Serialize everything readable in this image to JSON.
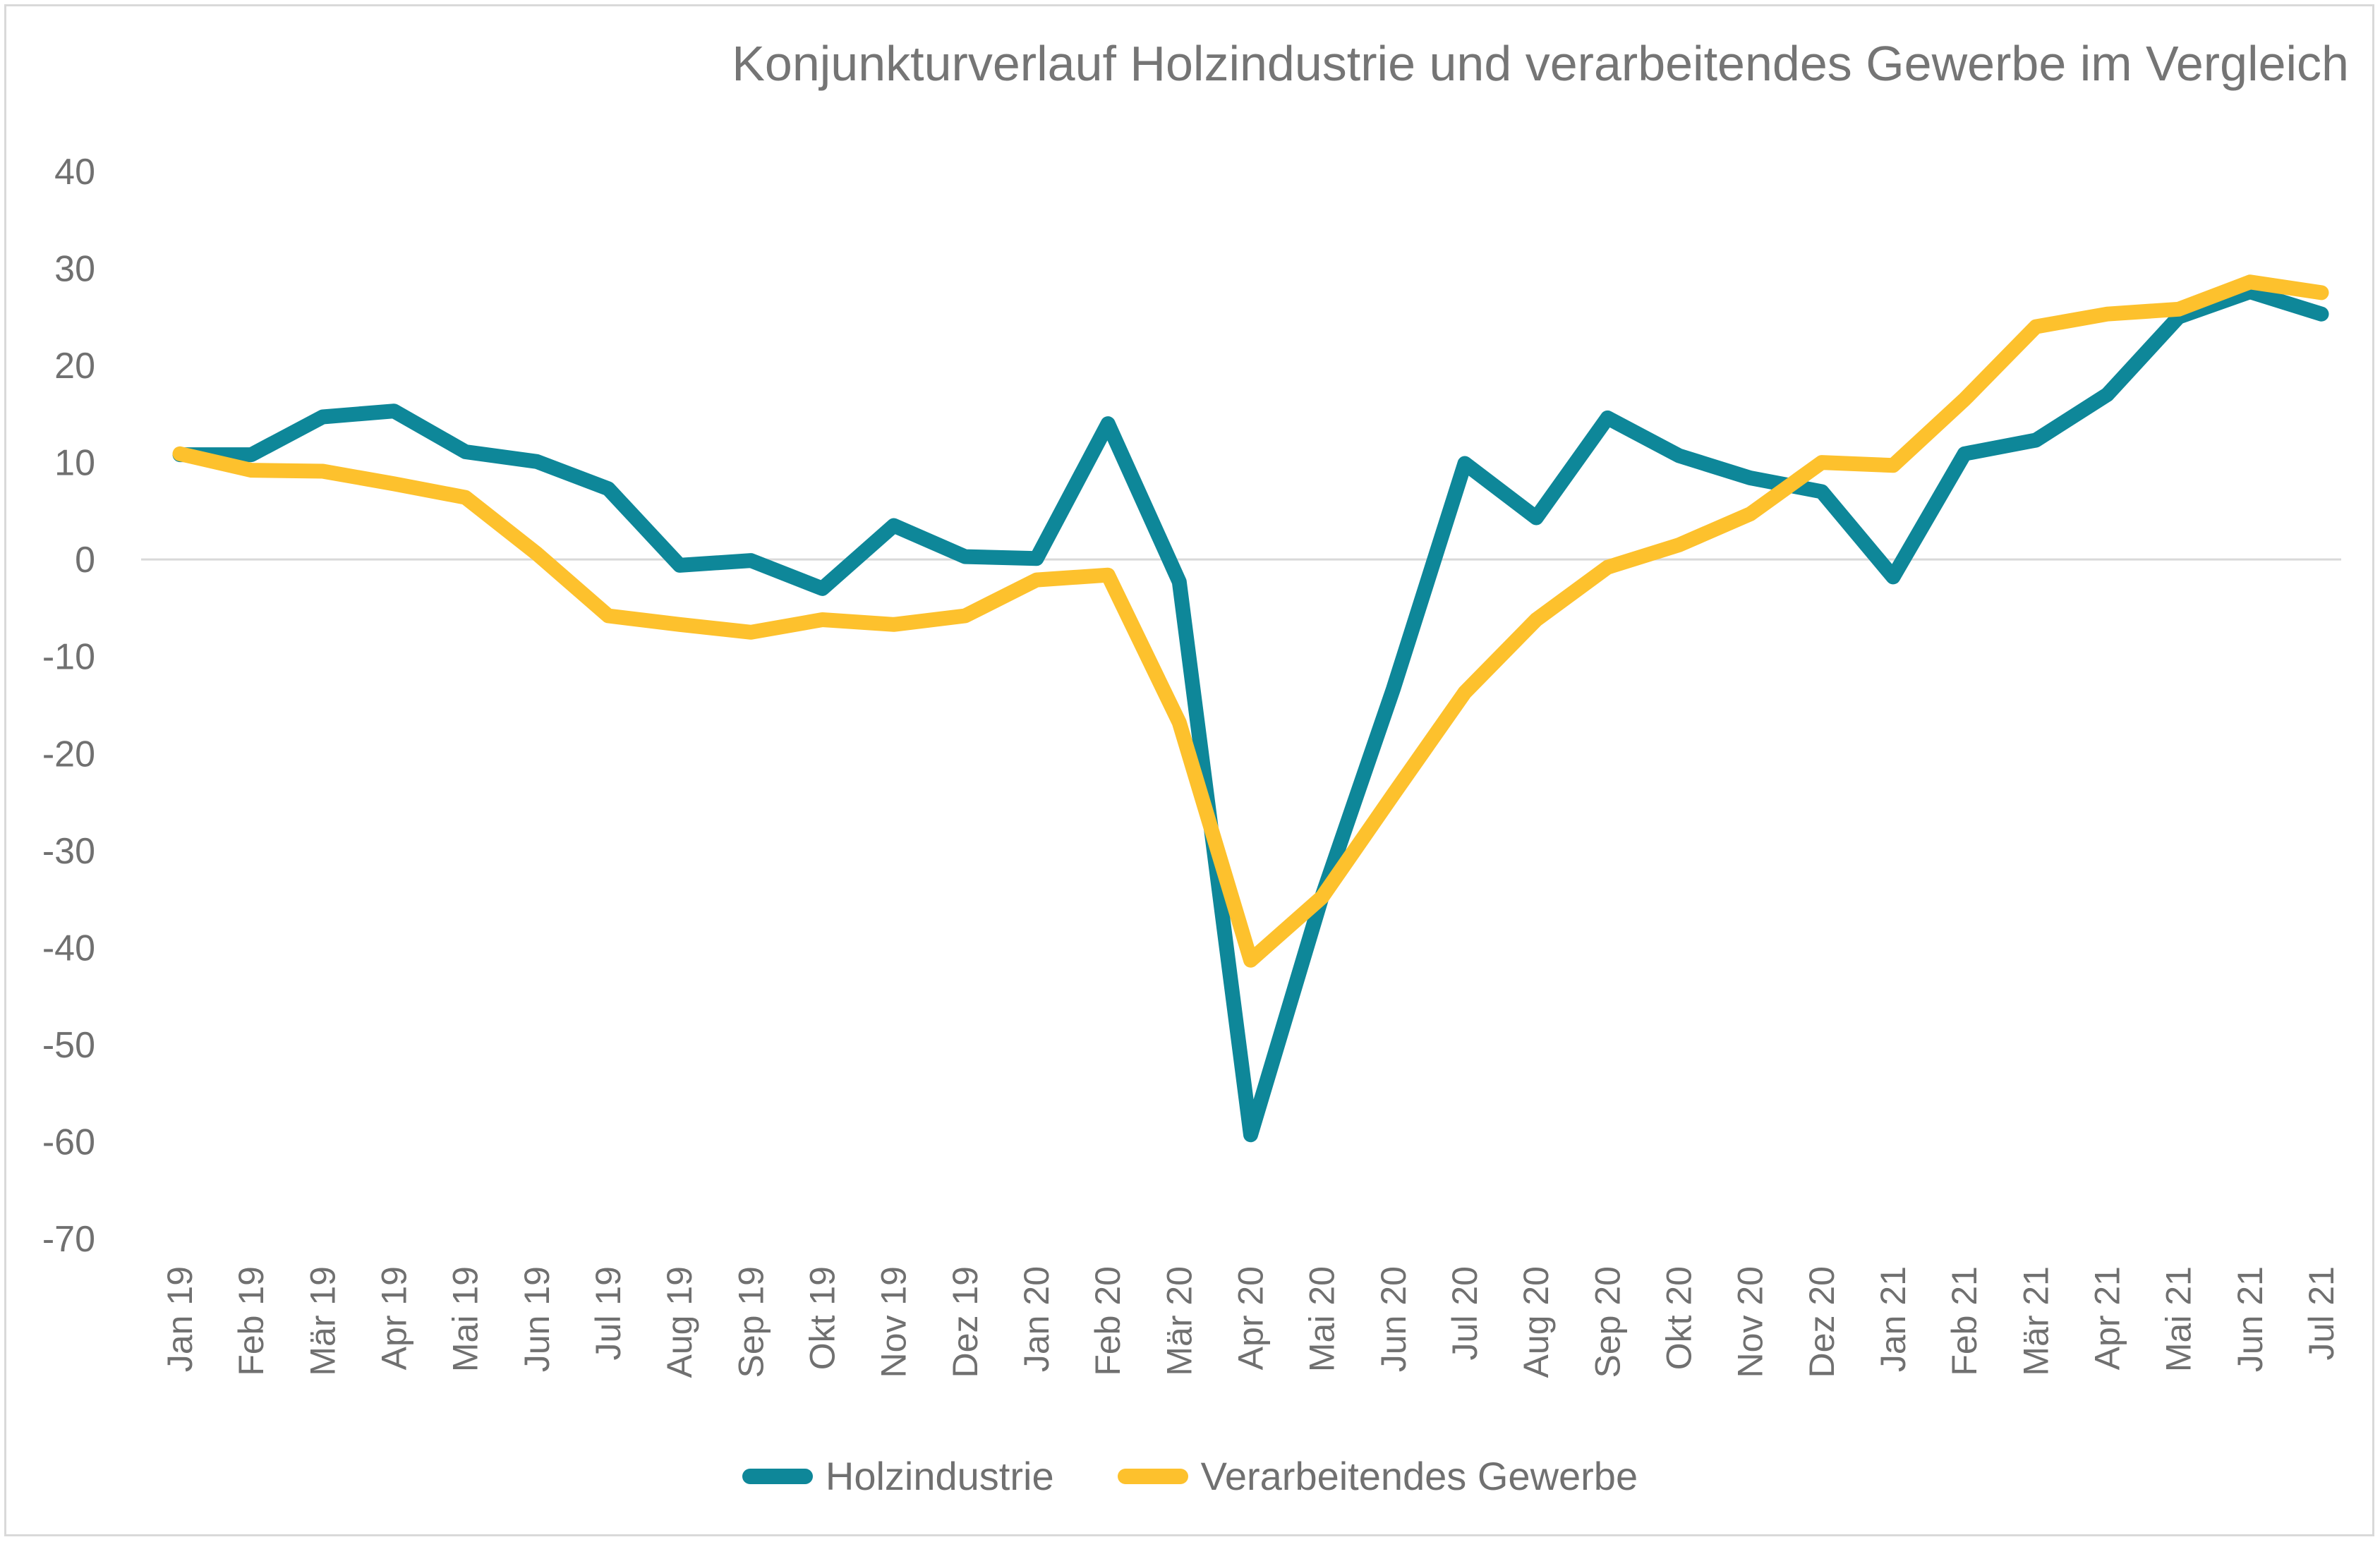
{
  "chart_data": {
    "type": "line",
    "title": "Konjunkturverlauf Holzindustrie und verarbeitendes Gewerbe im Vergleich",
    "categories": [
      "Jan 19",
      "Feb 19",
      "Mär 19",
      "Apr 19",
      "Mai 19",
      "Jun 19",
      "Jul 19",
      "Aug 19",
      "Sep 19",
      "Okt 19",
      "Nov 19",
      "Dez 19",
      "Jan 20",
      "Feb 20",
      "Mär 20",
      "Apr 20",
      "Mai 20",
      "Jun 20",
      "Jul 20",
      "Aug 20",
      "Sep 20",
      "Okt 20",
      "Nov 20",
      "Dez 20",
      "Jan 21",
      "Feb 21",
      "Mär 21",
      "Apr 21",
      "Mai 21",
      "Jun 21",
      "Jul 21"
    ],
    "yticks": [
      "40",
      "30",
      "20",
      "10",
      "0",
      "-10",
      "-20",
      "-30",
      "-40",
      "-50",
      "-60",
      "-70"
    ],
    "ylim": [
      -70,
      40
    ],
    "series": [
      {
        "name": "Holzindustrie",
        "color": "#0e8799",
        "values": [
          10.8,
          10.8,
          14.7,
          15.3,
          11.1,
          10.1,
          7.3,
          -0.6,
          -0.1,
          -3.0,
          3.5,
          0.3,
          0.1,
          14.0,
          -2.3,
          -59.3,
          -34.7,
          -13.3,
          9.9,
          4.3,
          14.6,
          10.7,
          8.4,
          7.0,
          -1.8,
          10.9,
          12.3,
          17.0,
          25.0,
          27.6,
          25.3
        ]
      },
      {
        "name": "Verarbeitendes Gewerbe",
        "color": "#fdc12d",
        "values": [
          10.9,
          9.2,
          9.1,
          7.8,
          6.4,
          0.6,
          -5.8,
          -6.7,
          -7.5,
          -6.2,
          -6.7,
          -5.8,
          -2.1,
          -1.6,
          -16.8,
          -41.3,
          -34.8,
          -24.2,
          -13.7,
          -6.2,
          -0.8,
          1.5,
          4.7,
          10.0,
          9.7,
          16.5,
          24.0,
          25.3,
          25.8,
          28.6,
          27.5
        ]
      }
    ],
    "legend": "bottom",
    "grid": false
  }
}
